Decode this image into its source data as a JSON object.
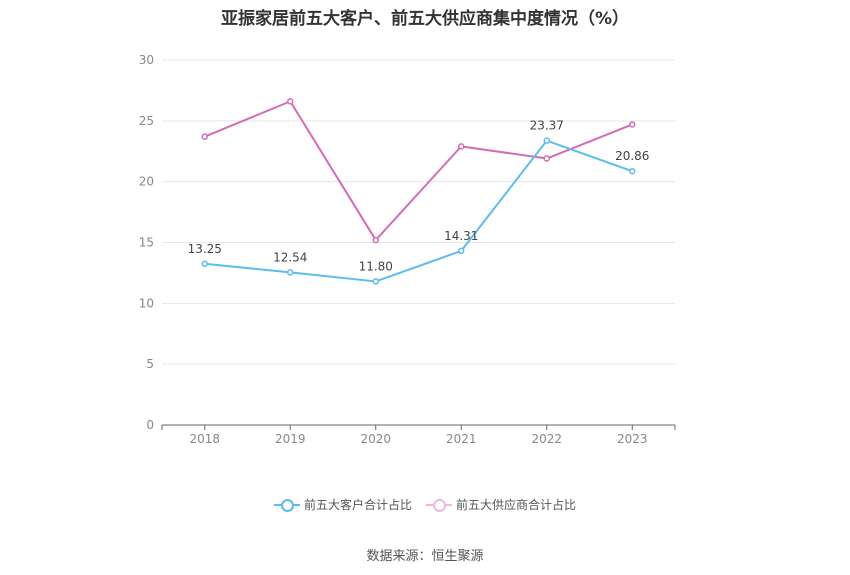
{
  "chart_data": {
    "type": "line",
    "title": "亚振家居前五大客户、前五大供应商集中度情况（%）",
    "categories": [
      "2018",
      "2019",
      "2020",
      "2021",
      "2022",
      "2023"
    ],
    "ylim": [
      0,
      30
    ],
    "yticks": [
      0,
      5,
      10,
      15,
      20,
      25,
      30
    ],
    "grid": true,
    "legend_position": "bottom",
    "series": [
      {
        "name": "前五大客户合计占比",
        "color": "#5bbcef",
        "values": [
          13.25,
          12.54,
          11.8,
          14.31,
          23.37,
          20.86
        ],
        "labels": [
          "13.25",
          "12.54",
          "11.80",
          "14.31",
          "23.37",
          "20.86"
        ]
      },
      {
        "name": "前五大供应商合计占比",
        "color": "#d56bb4",
        "values": [
          23.7,
          26.6,
          15.2,
          22.9,
          21.9,
          24.7
        ]
      }
    ],
    "source": "数据来源：恒生聚源"
  }
}
